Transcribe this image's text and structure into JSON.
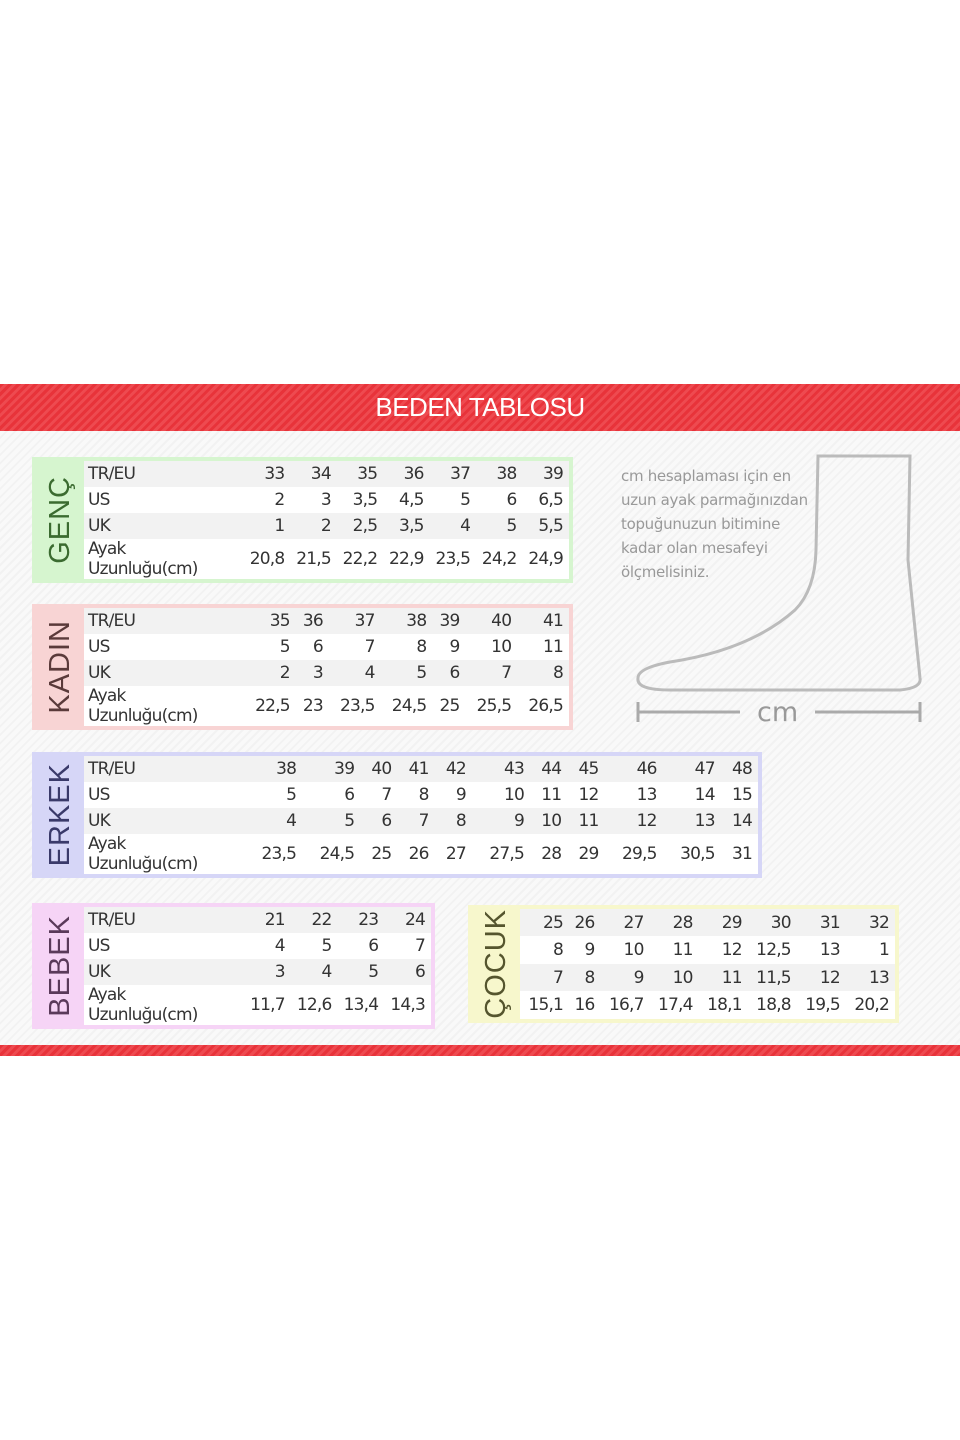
{
  "title": "BEDEN TABLOSU",
  "note": "cm hesaplaması için en uzun ayak parmağınızdan topuğunuzun bitimine kadar olan mesafeyi ölçmelisiniz.",
  "cm_label": "cm",
  "colors": {
    "header": "#e8333a",
    "genc": "#d6f5cf",
    "kadin": "#f8d4d4",
    "erkek": "#d6d6f7",
    "bebek": "#f6d4f6",
    "cocuk": "#f7f7cc"
  },
  "tables": {
    "genc": {
      "label": "GENÇ",
      "rows": [
        [
          "TR/EU",
          "33",
          "34",
          "35",
          "36",
          "37",
          "38",
          "39"
        ],
        [
          "US",
          "2",
          "3",
          "3,5",
          "4,5",
          "5",
          "6",
          "6,5"
        ],
        [
          "UK",
          "1",
          "2",
          "2,5",
          "3,5",
          "4",
          "5",
          "5,5"
        ],
        [
          "Ayak Uzunluğu(cm)",
          "20,8",
          "21,5",
          "22,2",
          "22,9",
          "23,5",
          "24,2",
          "24,9"
        ]
      ]
    },
    "kadin": {
      "label": "KADIN",
      "rows": [
        [
          "TR/EU",
          "35",
          "36",
          "37",
          "38",
          "39",
          "40",
          "41"
        ],
        [
          "US",
          "5",
          "6",
          "7",
          "8",
          "9",
          "10",
          "11"
        ],
        [
          "UK",
          "2",
          "3",
          "4",
          "5",
          "6",
          "7",
          "8"
        ],
        [
          "Ayak Uzunluğu(cm)",
          "22,5",
          "23",
          "23,5",
          "24,5",
          "25",
          "25,5",
          "26,5"
        ]
      ]
    },
    "erkek": {
      "label": "ERKEK",
      "rows": [
        [
          "TR/EU",
          "38",
          "39",
          "40",
          "41",
          "42",
          "43",
          "44",
          "45",
          "46",
          "47",
          "48"
        ],
        [
          "US",
          "5",
          "6",
          "7",
          "8",
          "9",
          "10",
          "11",
          "12",
          "13",
          "14",
          "15"
        ],
        [
          "UK",
          "4",
          "5",
          "6",
          "7",
          "8",
          "9",
          "10",
          "11",
          "12",
          "13",
          "14"
        ],
        [
          "Ayak Uzunluğu(cm)",
          "23,5",
          "24,5",
          "25",
          "26",
          "27",
          "27,5",
          "28",
          "29",
          "29,5",
          "30,5",
          "31"
        ]
      ]
    },
    "bebek": {
      "label": "BEBEK",
      "rows": [
        [
          "TR/EU",
          "21",
          "22",
          "23",
          "24"
        ],
        [
          "US",
          "4",
          "5",
          "6",
          "7"
        ],
        [
          "UK",
          "3",
          "4",
          "5",
          "6"
        ],
        [
          "Ayak Uzunluğu(cm)",
          "11,7",
          "12,6",
          "13,4",
          "14,3"
        ]
      ]
    },
    "cocuk": {
      "label": "ÇOCUK",
      "rows": [
        [
          "25",
          "26",
          "27",
          "28",
          "29",
          "30",
          "31",
          "32"
        ],
        [
          "8",
          "9",
          "10",
          "11",
          "12",
          "12,5",
          "13",
          "1"
        ],
        [
          "7",
          "8",
          "9",
          "10",
          "11",
          "11,5",
          "12",
          "13"
        ],
        [
          "15,1",
          "16",
          "16,7",
          "17,4",
          "18,1",
          "18,8",
          "19,5",
          "20,2"
        ]
      ]
    }
  }
}
